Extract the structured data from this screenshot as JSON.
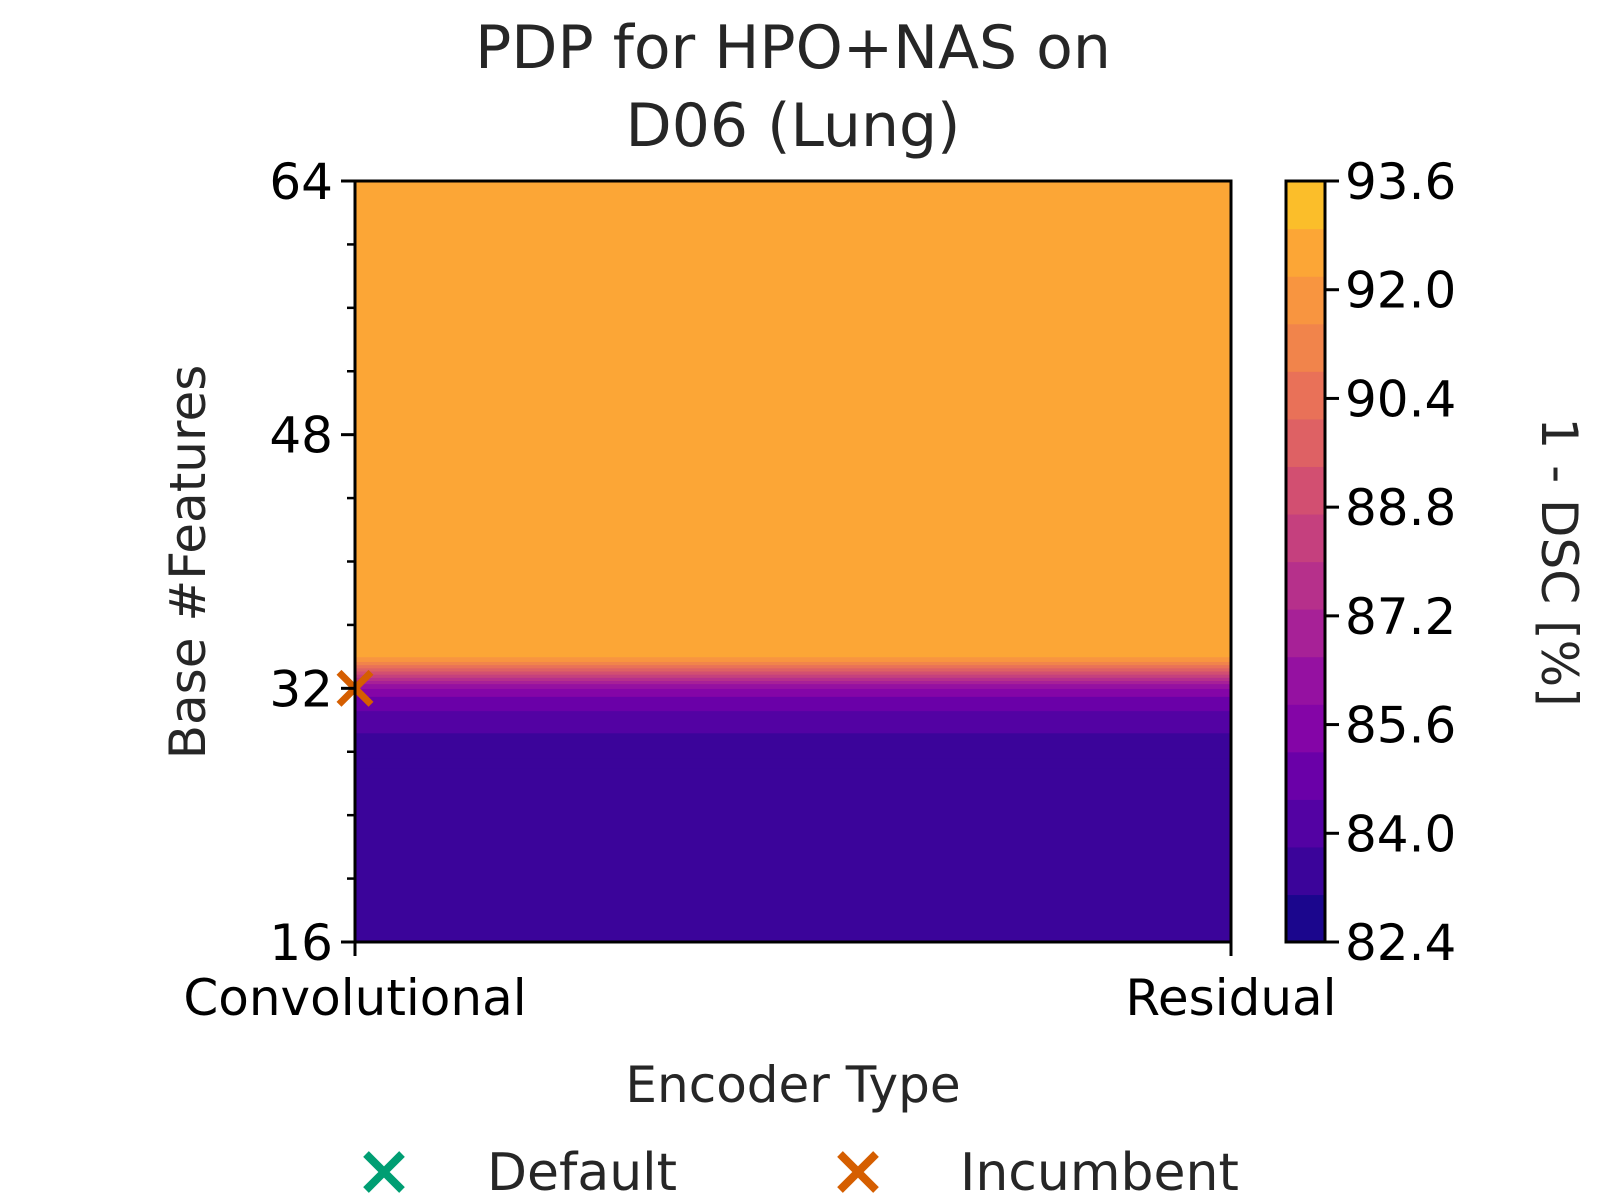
{
  "chart_data": {
    "type": "heatmap",
    "title": [
      "PDP for HPO+NAS on",
      "D06 (Lung)"
    ],
    "xlabel": "Encoder Type",
    "ylabel": "Base #Features",
    "x_categories": [
      "Convolutional",
      "Residual"
    ],
    "y_ticks": [
      "16",
      "32",
      "48",
      "64"
    ],
    "ylim": [
      16,
      64
    ],
    "colorbar": {
      "label": "1 - DSC [%]",
      "ticks": [
        "82.4",
        "84.0",
        "85.6",
        "87.2",
        "88.8",
        "90.4",
        "92.0",
        "93.6"
      ],
      "range": [
        82.4,
        93.6
      ],
      "levels": [
        82.4,
        83.1,
        83.8,
        84.5,
        85.2,
        85.9,
        86.6,
        87.3,
        88.0,
        88.7,
        89.4,
        90.1,
        90.8,
        91.5,
        92.2,
        92.9,
        93.6
      ],
      "colors": [
        "#1b068d",
        "#3b049a",
        "#5302a3",
        "#6a00a8",
        "#8405a7",
        "#9511a1",
        "#a72197",
        "#b6308b",
        "#c5407e",
        "#d24f71",
        "#de6164",
        "#e97158",
        "#f1844b",
        "#f89540",
        "#fca636",
        "#fbbe2a",
        "#f0f921"
      ]
    },
    "surface": [
      {
        "y": 16,
        "value": 83.7
      },
      {
        "y": 27,
        "value": 83.7
      },
      {
        "y": 27.6,
        "value": 83.2
      },
      {
        "y": 28.6,
        "value": 83.2
      },
      {
        "y": 29.2,
        "value": 83.9
      },
      {
        "y": 30.6,
        "value": 84.6
      },
      {
        "y": 31.5,
        "value": 85.3
      },
      {
        "y": 32.0,
        "value": 86.0
      },
      {
        "y": 32.3,
        "value": 86.7
      },
      {
        "y": 32.5,
        "value": 87.4
      },
      {
        "y": 32.7,
        "value": 88.1
      },
      {
        "y": 32.9,
        "value": 88.8
      },
      {
        "y": 33.1,
        "value": 89.5
      },
      {
        "y": 33.3,
        "value": 90.2
      },
      {
        "y": 33.5,
        "value": 90.9
      },
      {
        "y": 33.7,
        "value": 91.6
      },
      {
        "y": 34.0,
        "value": 92.4
      },
      {
        "y": 64,
        "value": 92.4
      }
    ],
    "series": [
      {
        "name": "Default",
        "marker": "x",
        "color": "#009e73",
        "points": []
      },
      {
        "name": "Incumbent",
        "marker": "x",
        "color": "#d55e00",
        "points": [
          {
            "x": "Convolutional",
            "y": 32
          }
        ]
      }
    ]
  }
}
